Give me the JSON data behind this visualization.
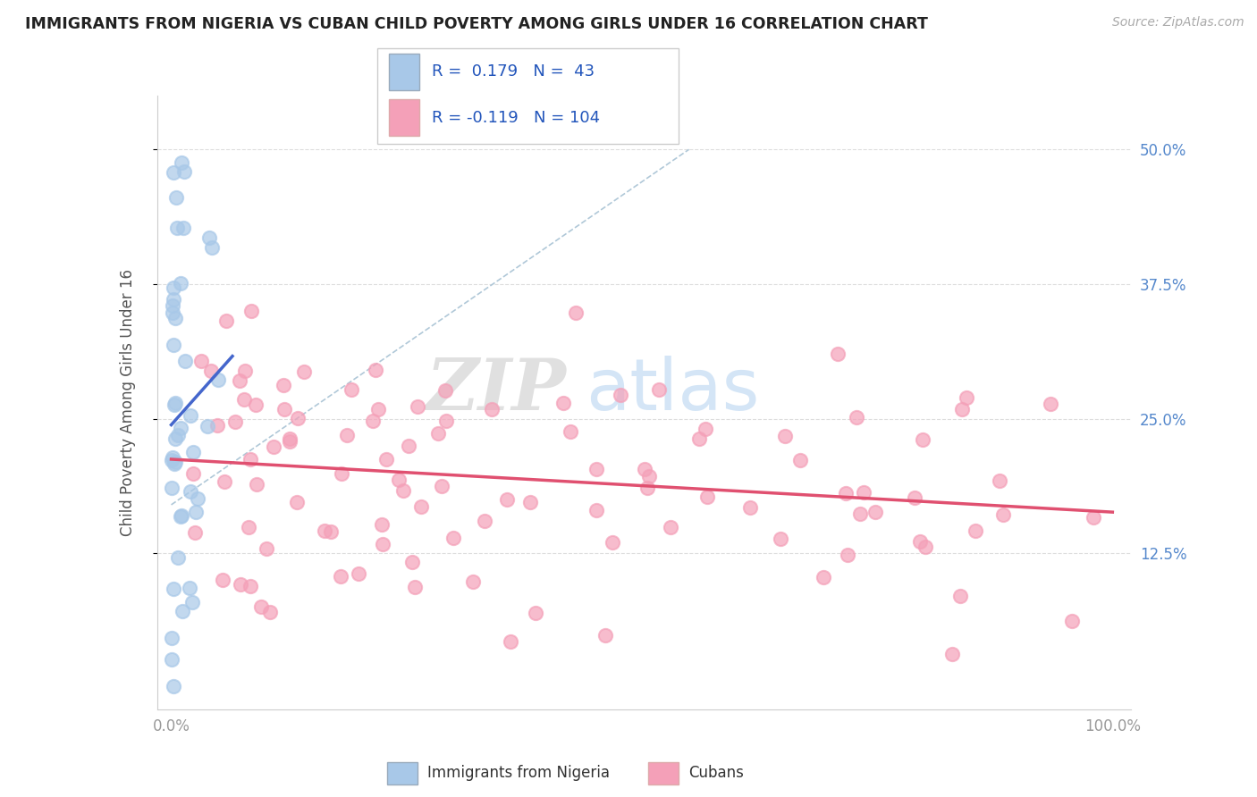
{
  "title": "IMMIGRANTS FROM NIGERIA VS CUBAN CHILD POVERTY AMONG GIRLS UNDER 16 CORRELATION CHART",
  "source": "Source: ZipAtlas.com",
  "ylabel": "Child Poverty Among Girls Under 16",
  "color_nigeria": "#a8c8e8",
  "color_cubans": "#f4a0b8",
  "color_nigeria_line": "#4466cc",
  "color_cubans_line": "#e05070",
  "R_nigeria": 0.179,
  "N_nigeria": 43,
  "R_cubans": -0.119,
  "N_cubans": 104,
  "watermark_zip": "ZIP",
  "watermark_atlas": "atlas",
  "bg_color": "#ffffff",
  "grid_color": "#dddddd",
  "ytick_color": "#5588cc",
  "xtick_color": "#999999"
}
